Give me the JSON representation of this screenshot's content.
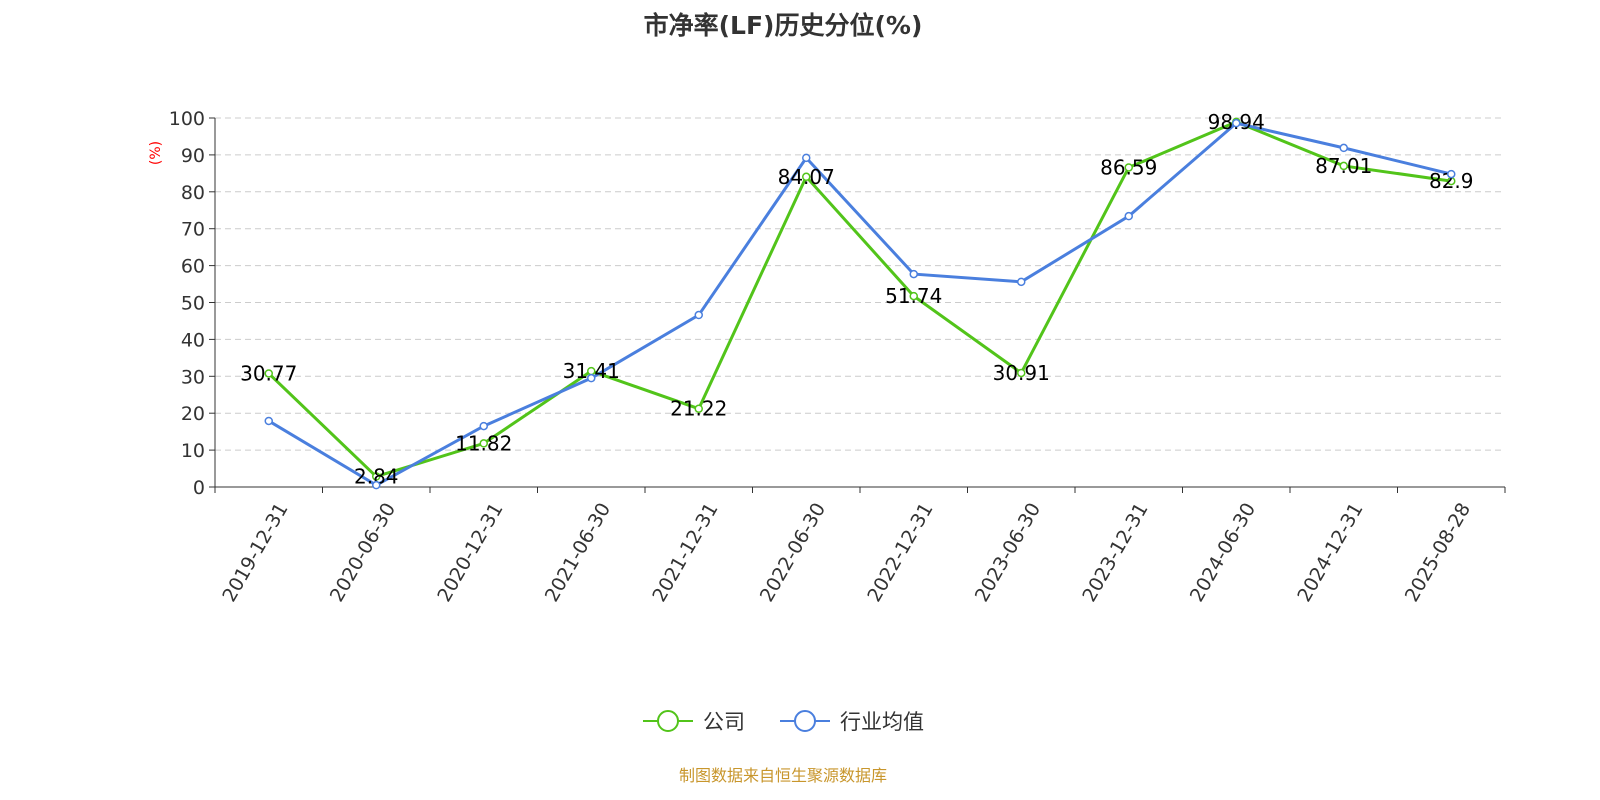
{
  "chart_data": {
    "type": "line",
    "title": "市净率(LF)历史分位(%)",
    "ylabel": "(%)",
    "xlabel": "",
    "ylim": [
      0,
      100
    ],
    "yticks": [
      0,
      10,
      20,
      30,
      40,
      50,
      60,
      70,
      80,
      90,
      100
    ],
    "grid": true,
    "legend_position": "bottom",
    "categories": [
      "2019-12-31",
      "2020-06-30",
      "2020-12-31",
      "2021-06-30",
      "2021-12-31",
      "2022-06-30",
      "2022-12-31",
      "2023-06-30",
      "2023-12-31",
      "2024-06-30",
      "2024-12-31",
      "2025-08-28"
    ],
    "series": [
      {
        "name": "公司",
        "color": "#52c41a",
        "labeled": true,
        "values": [
          30.77,
          2.84,
          11.82,
          31.41,
          21.22,
          84.07,
          51.74,
          30.91,
          86.59,
          98.94,
          87.01,
          82.9
        ]
      },
      {
        "name": "行业均值",
        "color": "#4a7fde",
        "labeled": false,
        "values": [
          17.9,
          0.5,
          16.5,
          29.5,
          46.6,
          89.2,
          57.7,
          55.6,
          73.4,
          98.6,
          91.9,
          84.8
        ]
      }
    ]
  },
  "source": "制图数据来自恒生聚源数据库"
}
